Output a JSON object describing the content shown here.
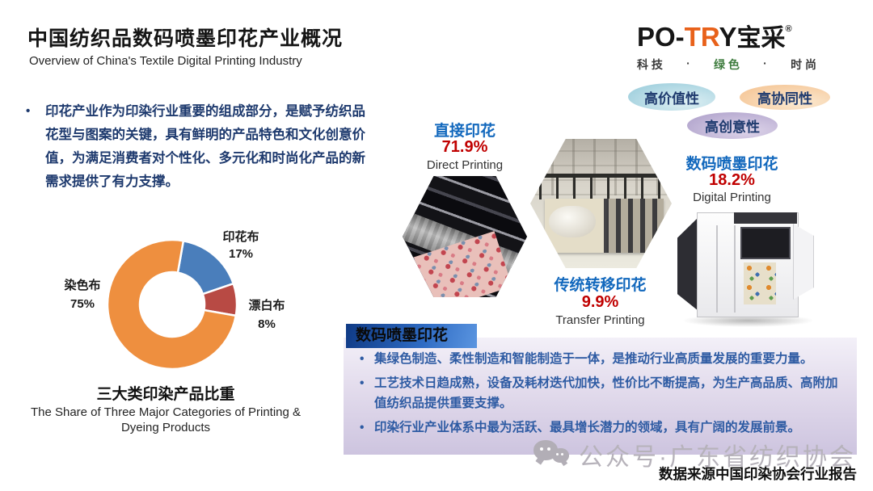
{
  "header": {
    "title": "中国纺织品数码喷墨印花产业概况",
    "subtitle": "Overview of China's Textile Digital Printing Industry",
    "logo": {
      "p1": "PO-",
      "p2": "TR",
      "p3": "Y",
      "cn": "宝采",
      "reg": "®",
      "tagline": {
        "t1": "科 技",
        "d1": "·",
        "t2": "绿 色",
        "d2": "·",
        "t3": "时 尚"
      }
    }
  },
  "intro": {
    "bullet": "•",
    "text": "印花产业作为印染行业重要的组成部分，是赋予纺织品花型与图案的关键，具有鲜明的产品特色和文化创意价值，为满足消费者对个性化、多元化和时尚化产品的新需求提供了有力支撑。"
  },
  "chart_data": {
    "type": "pie",
    "donut": true,
    "title": "三大类印染产品比重",
    "subtitle": "The Share of Three Major Categories of Printing & Dyeing Products",
    "labels": [
      "印花布",
      "漂白布",
      "染色布"
    ],
    "values": [
      17,
      8,
      75
    ],
    "pct_labels": [
      "17%",
      "8%",
      "75%"
    ],
    "colors": [
      "#4a7ebb",
      "#b84a44",
      "#ee8f3f"
    ],
    "start_angle_deg": 10,
    "direction": "clockwise",
    "legend_position": "outside-labels"
  },
  "segments": {
    "direct": {
      "name": "直接印花",
      "pct": "71.9%",
      "en": "Direct Printing"
    },
    "transfer": {
      "name": "传统转移印花",
      "pct": "9.9%",
      "en": "Transfer Printing"
    },
    "digital": {
      "name": "数码喷墨印花",
      "pct": "18.2%",
      "en": "Digital Printing"
    }
  },
  "badges": [
    {
      "label": "高价值性",
      "c1": "#9fcfdd",
      "c2": "#dff0f4"
    },
    {
      "label": "高协同性",
      "c1": "#f5c697",
      "c2": "#fbead2"
    },
    {
      "label": "高创意性",
      "c1": "#b2a5cd",
      "c2": "#ded5ea"
    }
  ],
  "panel": {
    "header": "数码喷墨印花",
    "bullets": [
      "集绿色制造、柔性制造和智能制造于一体，是推动行业高质量发展的重要力量。",
      "工艺技术日趋成熟，设备及耗材迭代加快，性价比不断提高，为生产高品质、高附加值纺织品提供重要支撑。",
      "印染行业产业体系中最为活跃、最具增长潜力的领域，具有广阔的发展前景。"
    ]
  },
  "footer": {
    "watermark": "公众号·广东省纺织协会",
    "source": "数据来源中国印染协会行业报告"
  },
  "colors": {
    "label_blue": "#1268bd",
    "pct_red": "#c00000",
    "navy_text": "#1e3a6e",
    "panel_text_blue": "#2e5ba3",
    "logo_orange": "#e8611a"
  }
}
